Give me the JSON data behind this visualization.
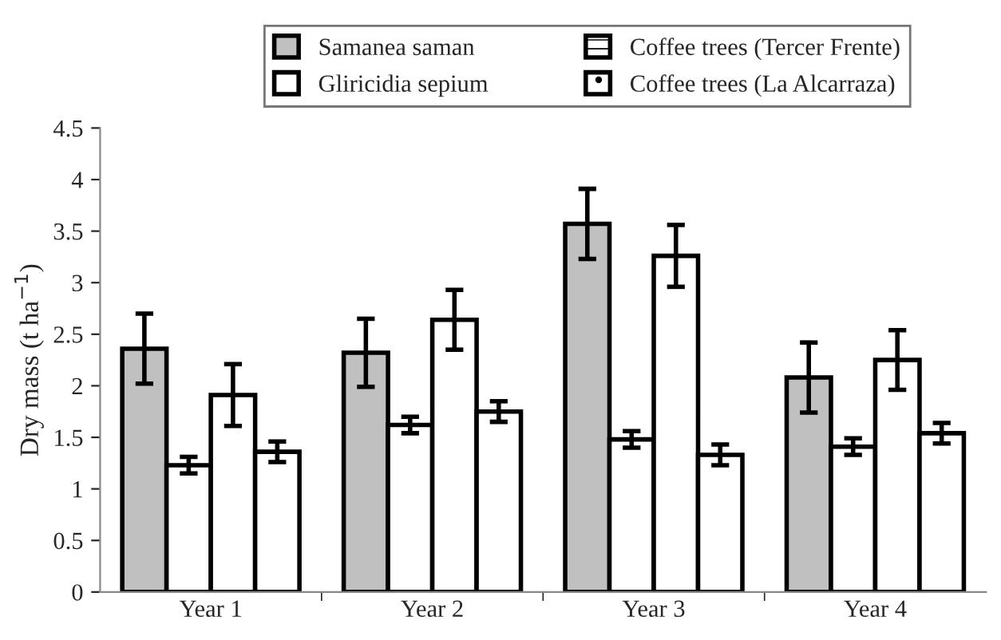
{
  "chart_data": {
    "type": "bar",
    "ylabel": "Dry mass (t ha$^{−1}$)",
    "categories": [
      "Year 1",
      "Year 2",
      "Year 3",
      "Year 4"
    ],
    "series": [
      {
        "name": "Samanea saman",
        "color": "#c0c0c0",
        "values": [
          2.36,
          2.32,
          3.57,
          2.08
        ],
        "errors": [
          0.34,
          0.33,
          0.34,
          0.34
        ]
      },
      {
        "name": "Coffee trees (Tercer Frente)",
        "color": "#ffffff",
        "values": [
          1.23,
          1.62,
          1.48,
          1.41
        ],
        "errors": [
          0.08,
          0.08,
          0.08,
          0.08
        ]
      },
      {
        "name": "Gliricidia sepium",
        "color": "#ffffff",
        "values": [
          1.91,
          2.64,
          3.26,
          2.25
        ],
        "errors": [
          0.3,
          0.29,
          0.3,
          0.29
        ]
      },
      {
        "name": "Coffee trees (La Alcarraza)",
        "color": "#ffffff",
        "values": [
          1.36,
          1.75,
          1.33,
          1.54
        ],
        "errors": [
          0.1,
          0.1,
          0.1,
          0.1
        ]
      }
    ],
    "ylim": [
      0,
      4.5
    ],
    "yticks": [
      0,
      0.5,
      1,
      1.5,
      2,
      2.5,
      3,
      3.5,
      4,
      4.5
    ],
    "grid": false,
    "legend": "top"
  }
}
